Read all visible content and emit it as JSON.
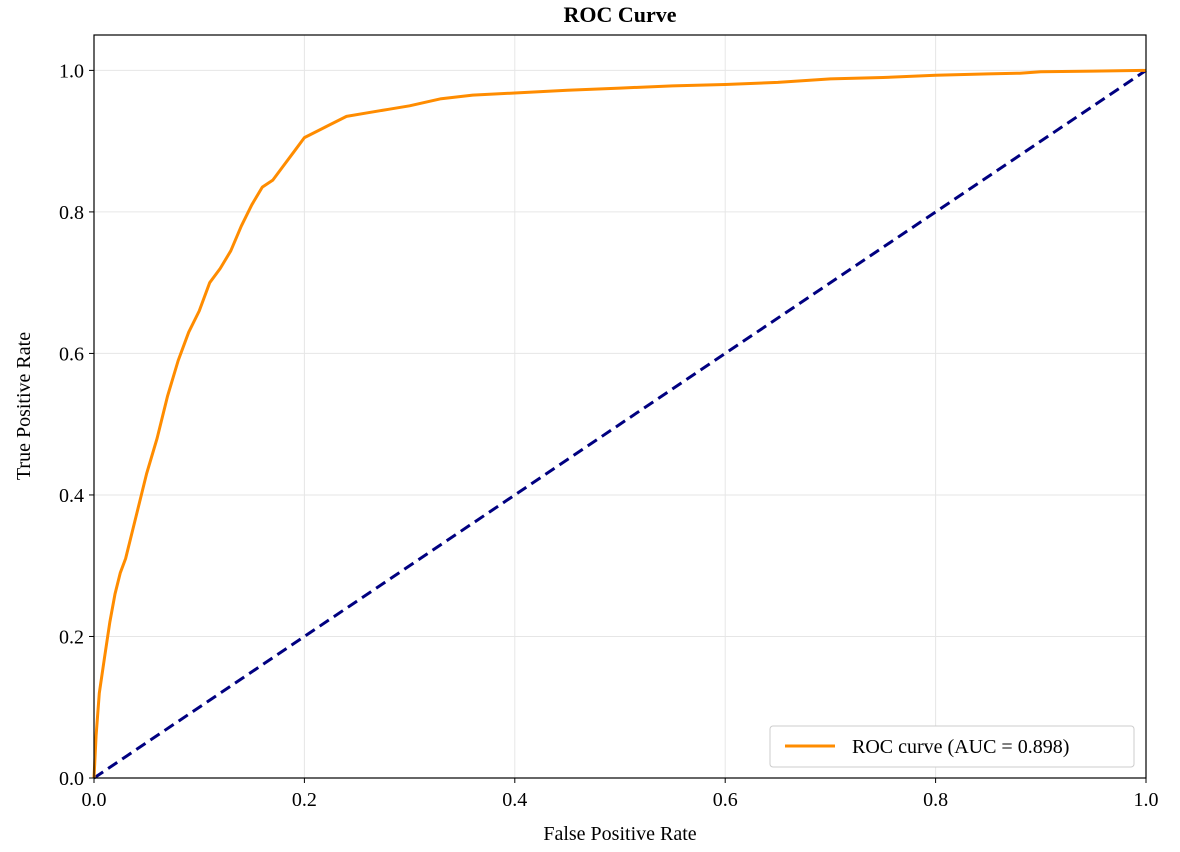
{
  "chart_data": {
    "type": "line",
    "title": "ROC Curve",
    "xlabel": "False Positive Rate",
    "ylabel": "True Positive Rate",
    "xlim": [
      0.0,
      1.0
    ],
    "ylim": [
      0.0,
      1.05
    ],
    "xticks": [
      "0.0",
      "0.2",
      "0.4",
      "0.6",
      "0.8",
      "1.0"
    ],
    "yticks": [
      "0.0",
      "0.2",
      "0.4",
      "0.6",
      "0.8",
      "1.0"
    ],
    "grid": true,
    "legend_position": "lower-right",
    "series": [
      {
        "name": "ROC curve (AUC = 0.898)",
        "color": "#ff8c00",
        "style": "solid",
        "x": [
          0.0,
          0.002,
          0.005,
          0.01,
          0.015,
          0.02,
          0.025,
          0.03,
          0.04,
          0.05,
          0.06,
          0.07,
          0.08,
          0.09,
          0.1,
          0.11,
          0.12,
          0.13,
          0.14,
          0.15,
          0.16,
          0.17,
          0.18,
          0.19,
          0.2,
          0.22,
          0.24,
          0.26,
          0.28,
          0.3,
          0.33,
          0.36,
          0.4,
          0.45,
          0.5,
          0.55,
          0.6,
          0.65,
          0.7,
          0.75,
          0.8,
          0.85,
          0.88,
          0.9,
          0.95,
          1.0
        ],
        "y": [
          0.0,
          0.06,
          0.12,
          0.17,
          0.22,
          0.26,
          0.29,
          0.31,
          0.37,
          0.43,
          0.48,
          0.54,
          0.59,
          0.63,
          0.66,
          0.7,
          0.72,
          0.745,
          0.78,
          0.81,
          0.835,
          0.845,
          0.865,
          0.885,
          0.905,
          0.92,
          0.935,
          0.94,
          0.945,
          0.95,
          0.96,
          0.965,
          0.968,
          0.972,
          0.975,
          0.978,
          0.98,
          0.983,
          0.988,
          0.99,
          0.993,
          0.995,
          0.996,
          0.998,
          0.999,
          1.0
        ]
      },
      {
        "name": "",
        "color": "#000080",
        "style": "dashed",
        "x": [
          0.0,
          1.0
        ],
        "y": [
          0.0,
          1.0
        ]
      }
    ]
  }
}
